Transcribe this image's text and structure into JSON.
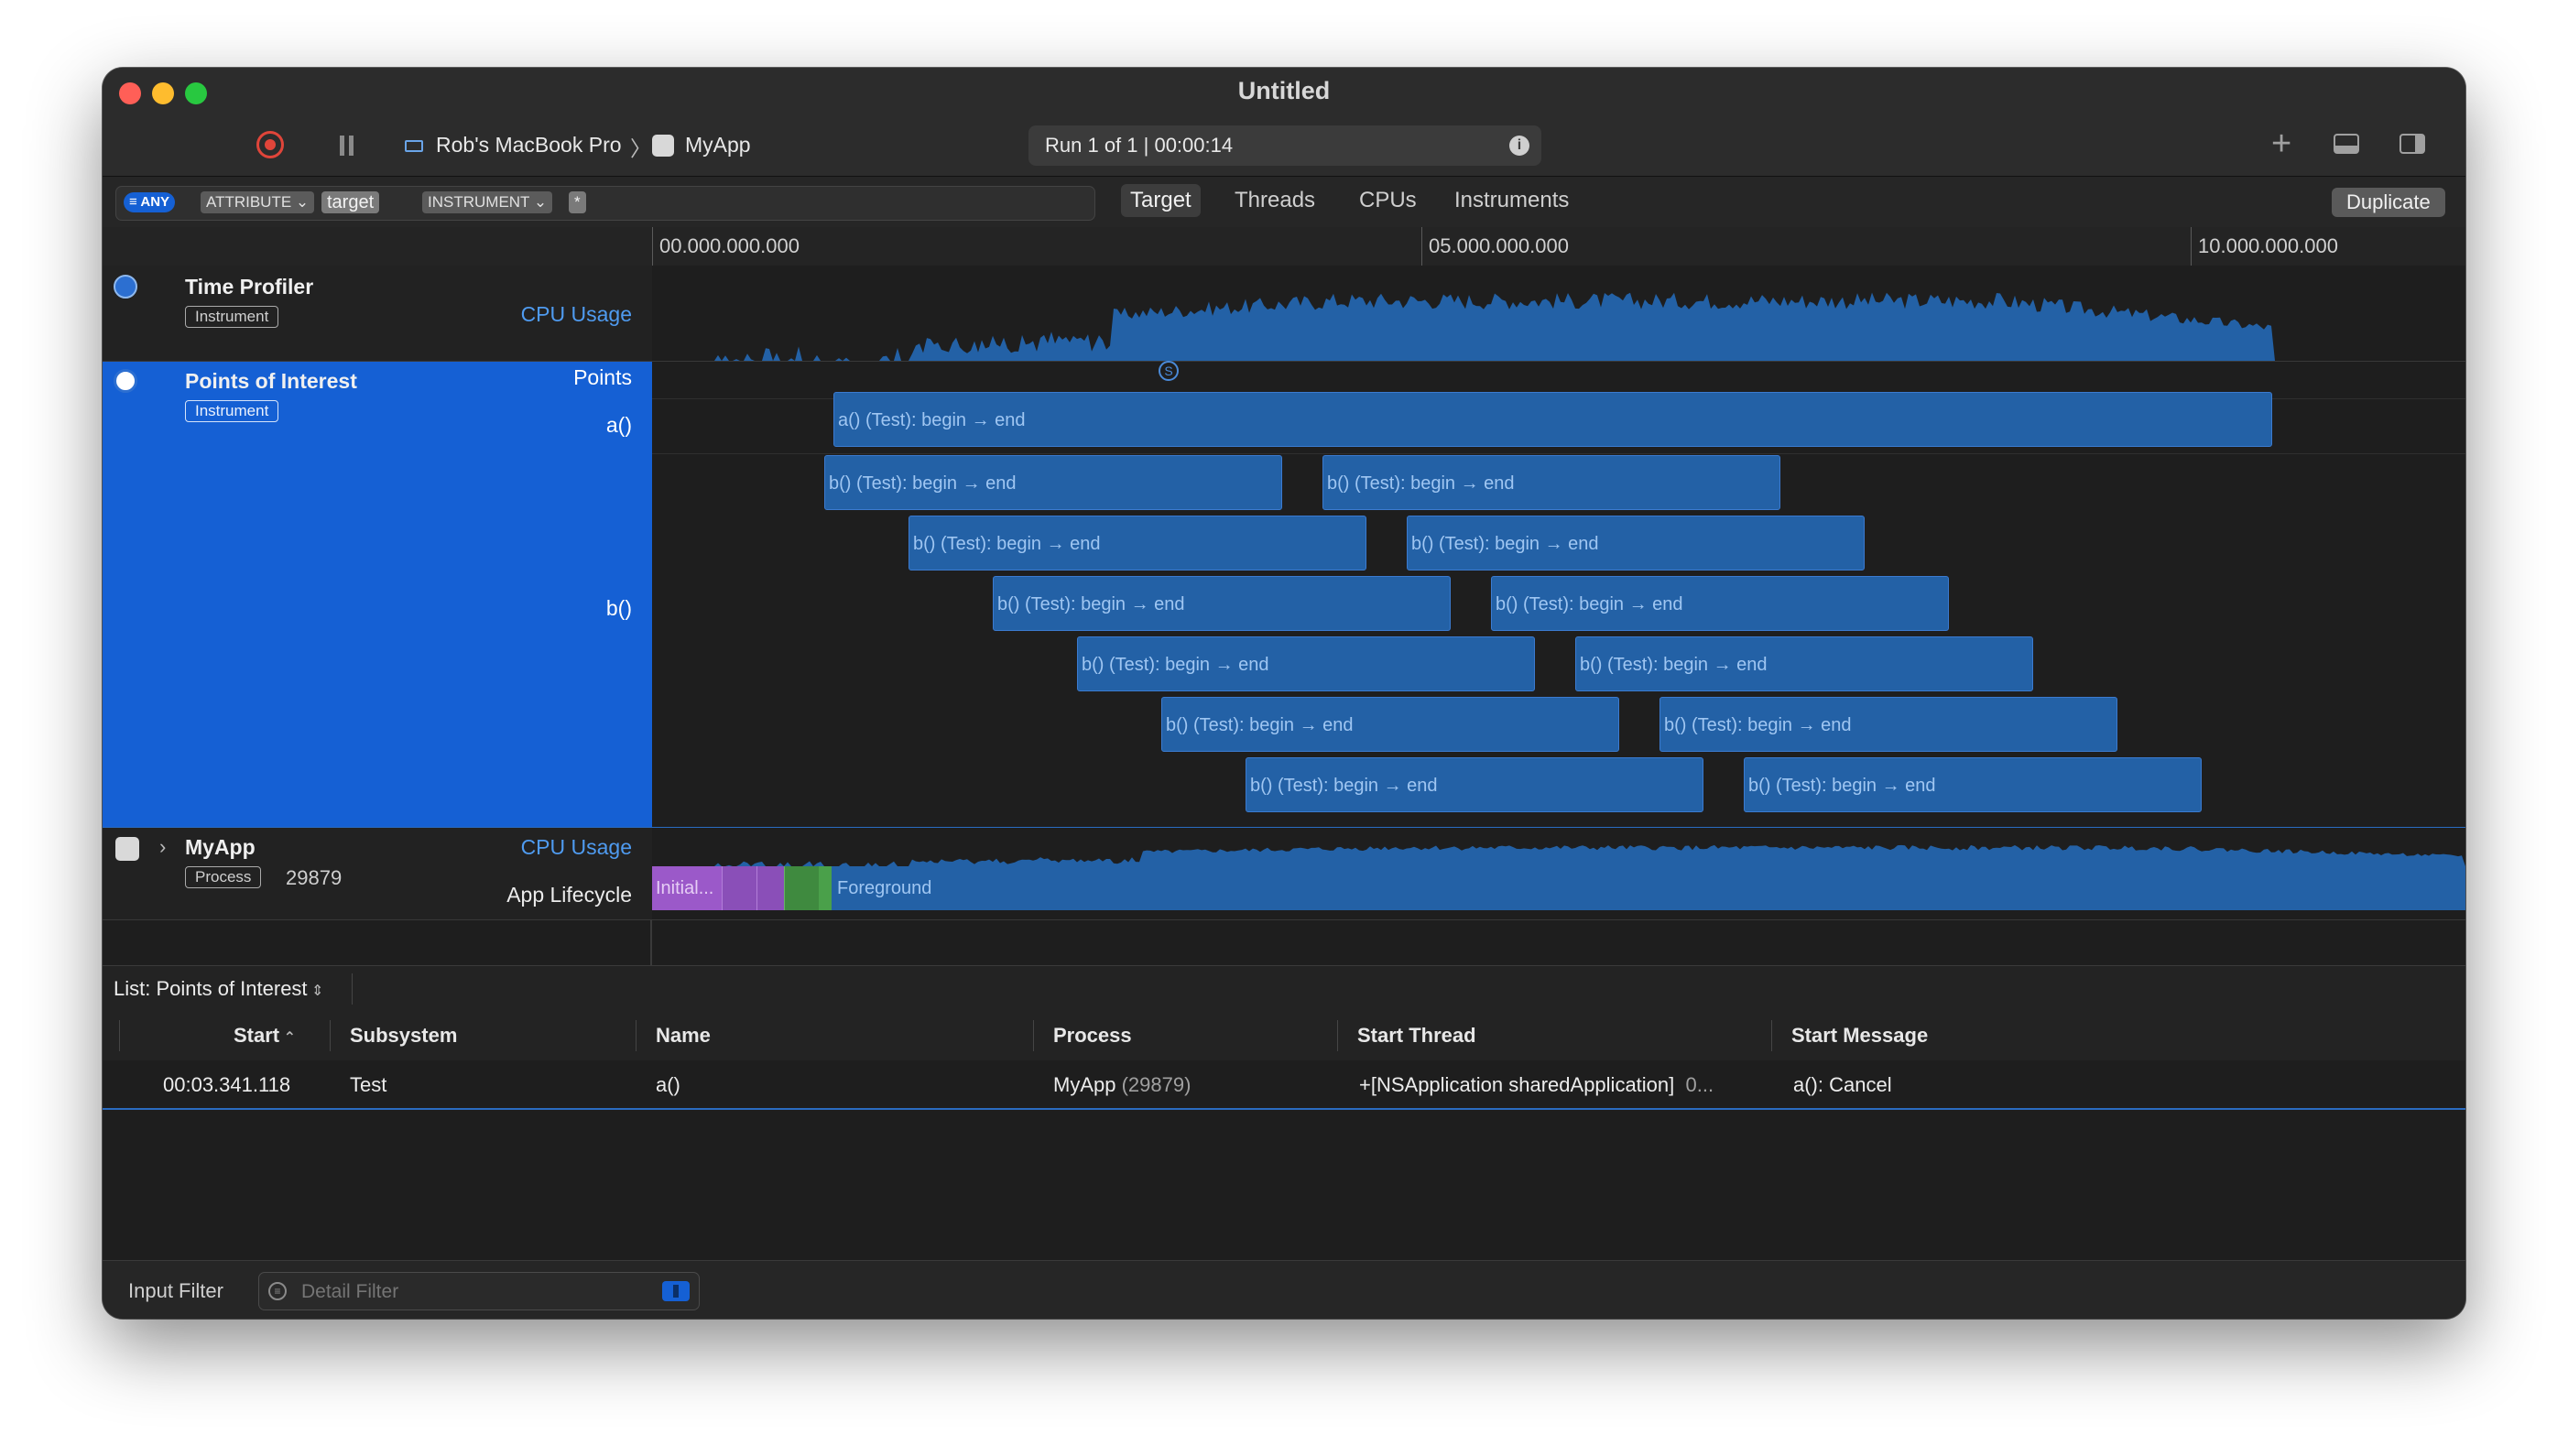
{
  "window": {
    "title": "Untitled"
  },
  "toolbar": {
    "device": "Rob's MacBook Pro",
    "app": "MyApp",
    "run_status": "Run 1 of 1  |  00:00:14"
  },
  "filter": {
    "tokens": [
      "ANY",
      "ATTRIBUTE",
      "target",
      "INSTRUMENT",
      "*"
    ],
    "scopes": [
      "Target",
      "Threads",
      "CPUs",
      "Instruments"
    ],
    "active_scope": "Target",
    "duplicate_label": "Duplicate"
  },
  "ruler": {
    "labels": [
      "00.000.000.000",
      "05.000.000.000",
      "10.000.000.000"
    ]
  },
  "tracks": {
    "time_profiler": {
      "name": "Time Profiler",
      "badge": "Instrument",
      "lane": "CPU Usage"
    },
    "poi": {
      "name": "Points of Interest",
      "badge": "Instrument",
      "lane_points": "Points",
      "lane_a": "a()",
      "lane_b": "b()",
      "signpost_a": "a() (Test): begin → end",
      "signpost_b": "b() (Test): begin → end",
      "signpost_b_count": 12
    },
    "myapp": {
      "name": "MyApp",
      "badge": "Process",
      "pid": "29879",
      "lane_cpu": "CPU Usage",
      "lane_lifecycle": "App Lifecycle",
      "phase_initial": "Initial...",
      "phase_foreground": "Foreground"
    }
  },
  "list": {
    "title": "List: Points of Interest",
    "columns": [
      "Start",
      "Subsystem",
      "Name",
      "Process",
      "Start Thread",
      "Start Message"
    ],
    "rows": [
      {
        "start": "00:03.341.118",
        "subsystem": "Test",
        "name": "a()",
        "process": "MyApp",
        "pid": "(29879)",
        "thread": "+[NSApplication sharedApplication]",
        "thread_extra": "0...",
        "message": "a(): Cancel"
      }
    ]
  },
  "footer": {
    "input_filter": "Input Filter",
    "detail_placeholder": "Detail Filter"
  },
  "colors": {
    "accent": "#1560d4",
    "bar": "#2361a6",
    "record": "#e0453a"
  }
}
